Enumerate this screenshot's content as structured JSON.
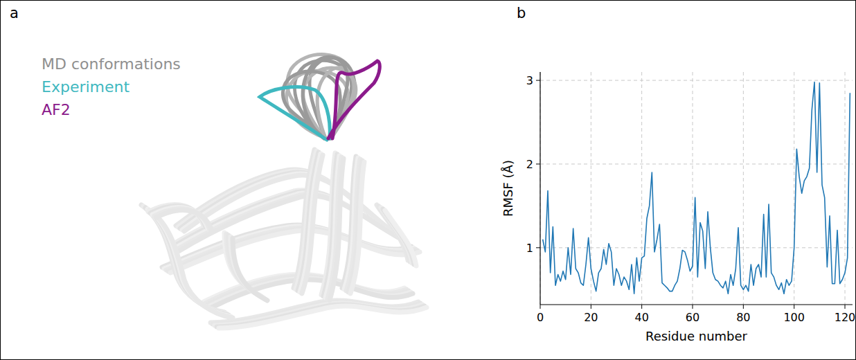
{
  "figure": {
    "panels": [
      {
        "label": "a",
        "legend": [
          {
            "name": "MD conformations",
            "color": "#8f8f8f"
          },
          {
            "name": "Experiment",
            "color": "#3fb8c0"
          },
          {
            "name": "AF2",
            "color": "#8b1a8b"
          }
        ]
      },
      {
        "label": "b"
      }
    ]
  },
  "chart_data": {
    "type": "line",
    "x_label": "Residue number",
    "y_label": "RMSF (Å)",
    "x": [
      1,
      2,
      3,
      4,
      5,
      6,
      7,
      8,
      9,
      10,
      11,
      12,
      13,
      14,
      15,
      16,
      17,
      18,
      19,
      20,
      21,
      22,
      23,
      24,
      25,
      26,
      27,
      28,
      29,
      30,
      31,
      32,
      33,
      34,
      35,
      36,
      37,
      38,
      39,
      40,
      41,
      42,
      43,
      44,
      45,
      46,
      47,
      48,
      49,
      50,
      51,
      52,
      53,
      54,
      55,
      56,
      57,
      58,
      59,
      60,
      61,
      62,
      63,
      64,
      65,
      66,
      67,
      68,
      69,
      70,
      71,
      72,
      73,
      74,
      75,
      76,
      77,
      78,
      79,
      80,
      81,
      82,
      83,
      84,
      85,
      86,
      87,
      88,
      89,
      90,
      91,
      92,
      93,
      94,
      95,
      96,
      97,
      98,
      99,
      100,
      101,
      102,
      103,
      104,
      105,
      106,
      107,
      108,
      109,
      110,
      111,
      112,
      113,
      114,
      115,
      116,
      117,
      118,
      119,
      120,
      121,
      122
    ],
    "values": [
      1.1,
      0.95,
      1.68,
      0.7,
      1.25,
      0.55,
      0.68,
      0.6,
      0.72,
      0.62,
      1.0,
      0.68,
      1.23,
      0.75,
      0.7,
      0.58,
      0.55,
      0.8,
      1.12,
      0.75,
      0.6,
      0.48,
      0.7,
      0.75,
      0.98,
      0.8,
      1.05,
      0.95,
      0.55,
      0.75,
      0.68,
      0.55,
      0.65,
      0.6,
      0.5,
      0.8,
      0.45,
      0.88,
      0.6,
      0.88,
      0.9,
      1.35,
      1.5,
      1.9,
      0.95,
      1.1,
      1.28,
      0.58,
      0.55,
      0.52,
      0.48,
      0.48,
      0.55,
      0.6,
      0.75,
      0.97,
      0.95,
      0.85,
      0.72,
      0.78,
      1.6,
      0.65,
      1.3,
      1.2,
      0.75,
      1.43,
      1.0,
      0.7,
      0.62,
      0.6,
      0.55,
      0.52,
      0.6,
      0.45,
      0.68,
      0.55,
      0.75,
      1.24,
      0.55,
      0.5,
      0.55,
      0.48,
      0.8,
      0.55,
      0.75,
      0.8,
      0.65,
      1.4,
      0.65,
      1.52,
      0.7,
      0.65,
      0.55,
      0.5,
      0.58,
      0.45,
      0.62,
      0.55,
      0.6,
      1.0,
      2.18,
      1.85,
      1.65,
      1.8,
      1.85,
      1.95,
      2.65,
      2.98,
      1.9,
      2.97,
      1.75,
      1.6,
      0.77,
      1.38,
      0.57,
      0.57,
      1.21,
      0.57,
      0.62,
      0.7,
      0.88,
      2.85
    ],
    "color": "#1f77b4",
    "xlim": [
      0,
      123
    ],
    "ylim": [
      0.32,
      3.1
    ],
    "xticks": [
      0,
      20,
      40,
      60,
      80,
      100,
      120
    ],
    "yticks": [
      1,
      2,
      3
    ],
    "grid": true
  }
}
